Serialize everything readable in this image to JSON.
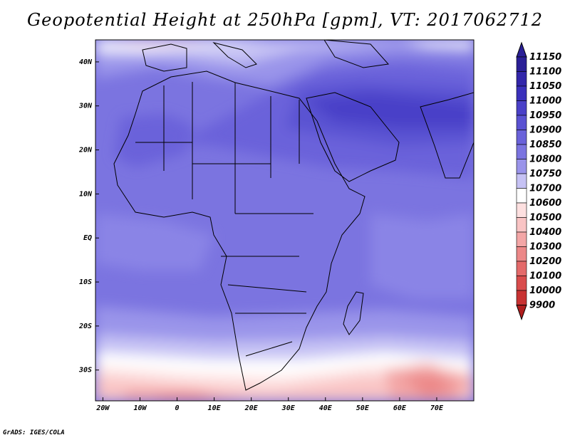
{
  "title": "Geopotential Height at 250hPa [gpm], VT: 2017062712",
  "credit": "GrADS: IGES/COLA",
  "map": {
    "lon_range": [
      -22,
      80
    ],
    "lat_range": [
      -37,
      45
    ],
    "lon_ticks": [
      {
        "value": -20,
        "label": "20W"
      },
      {
        "value": -10,
        "label": "10W"
      },
      {
        "value": 0,
        "label": "0"
      },
      {
        "value": 10,
        "label": "10E"
      },
      {
        "value": 20,
        "label": "20E"
      },
      {
        "value": 30,
        "label": "30E"
      },
      {
        "value": 40,
        "label": "40E"
      },
      {
        "value": 50,
        "label": "50E"
      },
      {
        "value": 60,
        "label": "60E"
      },
      {
        "value": 70,
        "label": "70E"
      }
    ],
    "lat_ticks": [
      {
        "value": 40,
        "label": "40N"
      },
      {
        "value": 30,
        "label": "30N"
      },
      {
        "value": 20,
        "label": "20N"
      },
      {
        "value": 10,
        "label": "10N"
      },
      {
        "value": 0,
        "label": "EQ"
      },
      {
        "value": -10,
        "label": "10S"
      },
      {
        "value": -20,
        "label": "20S"
      },
      {
        "value": -30,
        "label": "30S"
      }
    ]
  },
  "legend": {
    "levels": [
      "11150",
      "11100",
      "11050",
      "11000",
      "10950",
      "10900",
      "10850",
      "10800",
      "10750",
      "10700",
      "10600",
      "10500",
      "10400",
      "10300",
      "10200",
      "10100",
      "10000",
      "9900"
    ],
    "colors": [
      "#2a1f96",
      "#3226aa",
      "#3a30bb",
      "#4a40c8",
      "#5a52d2",
      "#6a62da",
      "#7b74e0",
      "#9a94ea",
      "#c6c2f4",
      "#ffffff",
      "#fde0e0",
      "#f9c4c4",
      "#f3a6a6",
      "#ec8888",
      "#e46a6a",
      "#d94c4c",
      "#c83232",
      "#b01e1e"
    ]
  },
  "chart_data": {
    "type": "heatmap",
    "variable": "Geopotential Height at 250hPa [gpm]",
    "valid_time": "2017062712",
    "x_range_deg": [
      -22,
      80
    ],
    "y_range_deg": [
      -37,
      45
    ],
    "contour_levels": [
      9900,
      10000,
      10100,
      10200,
      10300,
      10400,
      10500,
      10600,
      10700,
      10750,
      10800,
      10850,
      10900,
      10950,
      11000,
      11050,
      11100,
      11150
    ]
  }
}
